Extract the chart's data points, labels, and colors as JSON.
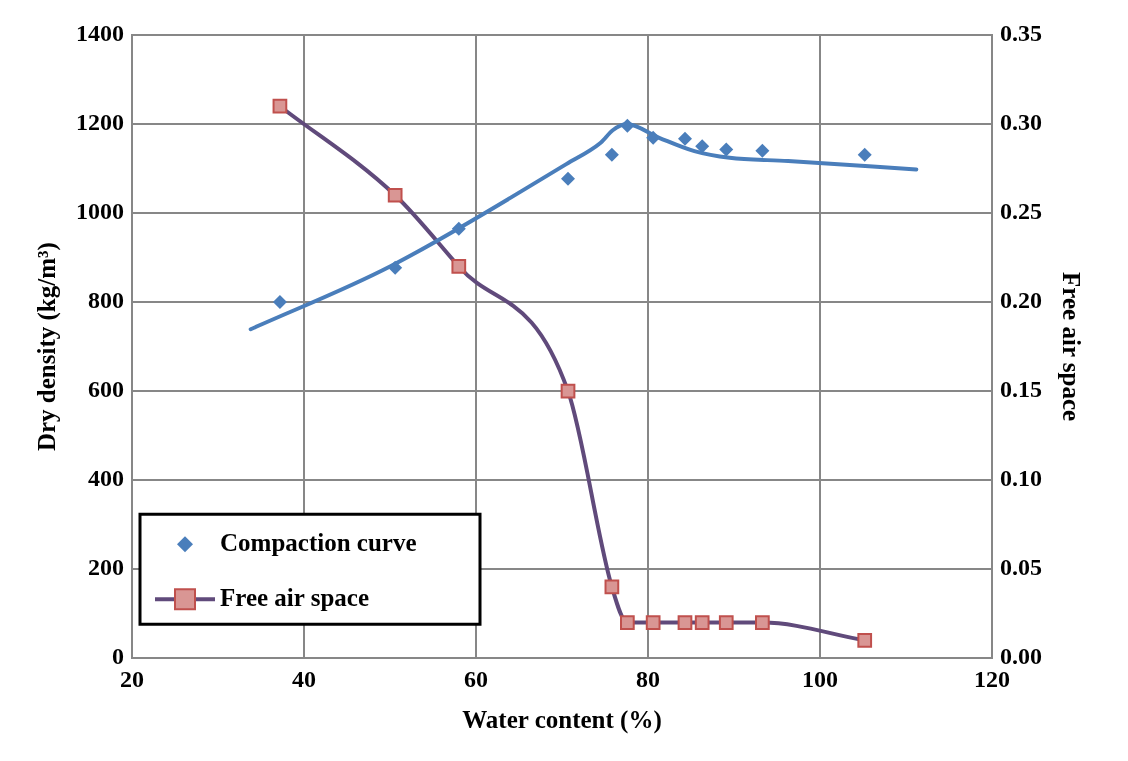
{
  "chart_data": {
    "type": "scatter",
    "xlabel": "Water content (%)",
    "ylabel": "Dry density (kg/m³)",
    "y2label": "Free air space",
    "xlim": [
      20,
      120
    ],
    "xticks": [
      20,
      40,
      60,
      80,
      100,
      120
    ],
    "ylim": [
      0,
      1400
    ],
    "yticks": [
      0,
      200,
      400,
      600,
      800,
      1000,
      1200,
      1400
    ],
    "y2lim": [
      0,
      0.35
    ],
    "y2ticks": [
      {
        "value": 0,
        "label": "0.00"
      },
      {
        "value": 0.05,
        "label": "0.05"
      },
      {
        "value": 0.1,
        "label": "0.10"
      },
      {
        "value": 0.15,
        "label": "0.15"
      },
      {
        "value": 0.2,
        "label": "0.20"
      },
      {
        "value": 0.25,
        "label": "0.25"
      },
      {
        "value": 0.3,
        "label": "0.30"
      },
      {
        "value": 0.35,
        "label": "0.35"
      }
    ],
    "grid": true,
    "legend": "bottom left",
    "series": [
      {
        "name": "Compaction curve",
        "marker": "diamond",
        "color": "#4a7ebb",
        "x": [
          37.2,
          50.6,
          58,
          70.7,
          75.8,
          77.6,
          80.6,
          84.3,
          86.3,
          89.1,
          93.3,
          105.2
        ],
        "values": [
          800,
          877,
          965,
          1077,
          1131,
          1196,
          1169,
          1167,
          1150,
          1143,
          1140,
          1131
        ]
      },
      {
        "type": "line",
        "marker": "none",
        "color": "#4a7ebb",
        "x": [
          33.8,
          50,
          70.5,
          74.5,
          75.9,
          77.5,
          81.3,
          85.4,
          89.5,
          96.3,
          111.2
        ],
        "values": [
          739,
          880,
          1110,
          1158,
          1186,
          1200,
          1169,
          1139,
          1124,
          1117,
          1098
        ]
      },
      {
        "name": "Free air space",
        "type": "line",
        "axis": "y2",
        "marker": "square",
        "color": "#604a7b",
        "x": [
          37.2,
          50.6,
          58,
          70.7,
          75.8,
          77.6,
          80.6,
          84.3,
          86.3,
          89.1,
          93.3,
          105.2
        ],
        "values": [
          0.31,
          0.26,
          0.22,
          0.15,
          0.04,
          0.02,
          0.02,
          0.02,
          0.02,
          0.02,
          0.02,
          0.01
        ]
      }
    ]
  }
}
